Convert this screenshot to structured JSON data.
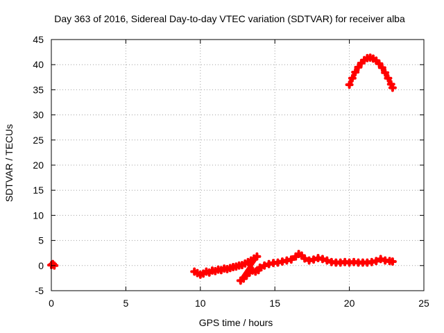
{
  "chart_data": {
    "type": "scatter",
    "title": "Day 363 of 2016, Sidereal Day-to-day VTEC variation (SDTVAR) for receiver alba",
    "xlabel": "GPS time / hours",
    "ylabel": "SDTVAR / TECUs",
    "xlim": [
      0,
      25
    ],
    "ylim": [
      -5,
      45
    ],
    "xticks": [
      0,
      5,
      10,
      15,
      20,
      25
    ],
    "yticks": [
      -5,
      0,
      5,
      10,
      15,
      20,
      25,
      30,
      35,
      40,
      45
    ],
    "grid": true,
    "legend": "none",
    "series_color": "#ff0000",
    "series": [
      {
        "name": "SDTVAR start",
        "points": [
          [
            0.0,
            0.1
          ],
          [
            0.1,
            0.3
          ],
          [
            0.2,
            0.0
          ]
        ]
      },
      {
        "name": "SDTVAR 9.5-14h",
        "points": [
          [
            9.6,
            -1.2
          ],
          [
            9.8,
            -1.5
          ],
          [
            10.0,
            -1.8
          ],
          [
            10.2,
            -1.6
          ],
          [
            10.4,
            -1.2
          ],
          [
            10.6,
            -1.4
          ],
          [
            10.8,
            -1.0
          ],
          [
            11.0,
            -1.1
          ],
          [
            11.2,
            -0.8
          ],
          [
            11.4,
            -0.9
          ],
          [
            11.6,
            -0.6
          ],
          [
            11.8,
            -0.7
          ],
          [
            12.0,
            -0.5
          ],
          [
            12.2,
            -0.3
          ],
          [
            12.4,
            -0.2
          ],
          [
            12.6,
            0.0
          ],
          [
            12.8,
            0.1
          ],
          [
            13.0,
            0.4
          ],
          [
            13.2,
            0.7
          ],
          [
            13.4,
            1.0
          ],
          [
            13.6,
            1.4
          ],
          [
            13.8,
            1.8
          ],
          [
            12.7,
            -3.0
          ],
          [
            12.9,
            -2.6
          ],
          [
            13.1,
            -2.0
          ],
          [
            13.3,
            -1.4
          ],
          [
            13.5,
            -1.0
          ],
          [
            13.7,
            -1.2
          ],
          [
            13.9,
            -0.9
          ]
        ]
      },
      {
        "name": "SDTVAR 14-23h",
        "points": [
          [
            14.0,
            -0.4
          ],
          [
            14.3,
            0.0
          ],
          [
            14.6,
            0.3
          ],
          [
            14.9,
            0.5
          ],
          [
            15.2,
            0.6
          ],
          [
            15.5,
            0.8
          ],
          [
            15.8,
            1.0
          ],
          [
            16.1,
            1.2
          ],
          [
            16.4,
            1.8
          ],
          [
            16.6,
            2.3
          ],
          [
            16.8,
            2.0
          ],
          [
            17.0,
            1.4
          ],
          [
            17.3,
            1.0
          ],
          [
            17.6,
            1.2
          ],
          [
            17.9,
            1.5
          ],
          [
            18.2,
            1.3
          ],
          [
            18.5,
            1.0
          ],
          [
            18.8,
            0.7
          ],
          [
            19.1,
            0.6
          ],
          [
            19.4,
            0.6
          ],
          [
            19.7,
            0.7
          ],
          [
            20.0,
            0.6
          ],
          [
            20.3,
            0.7
          ],
          [
            20.6,
            0.6
          ],
          [
            20.9,
            0.6
          ],
          [
            21.2,
            0.6
          ],
          [
            21.5,
            0.7
          ],
          [
            21.8,
            0.9
          ],
          [
            22.1,
            1.3
          ],
          [
            22.4,
            1.0
          ],
          [
            22.7,
            0.9
          ],
          [
            22.9,
            0.8
          ]
        ]
      },
      {
        "name": "SDTVAR arc",
        "points": [
          [
            20.0,
            36.0
          ],
          [
            20.2,
            37.3
          ],
          [
            20.4,
            38.5
          ],
          [
            20.6,
            39.5
          ],
          [
            20.8,
            40.3
          ],
          [
            21.0,
            40.9
          ],
          [
            21.2,
            41.3
          ],
          [
            21.4,
            41.4
          ],
          [
            21.6,
            41.2
          ],
          [
            21.8,
            40.8
          ],
          [
            22.0,
            40.2
          ],
          [
            22.2,
            39.4
          ],
          [
            22.4,
            38.4
          ],
          [
            22.6,
            37.3
          ],
          [
            22.8,
            36.1
          ],
          [
            22.9,
            35.4
          ]
        ]
      }
    ]
  }
}
